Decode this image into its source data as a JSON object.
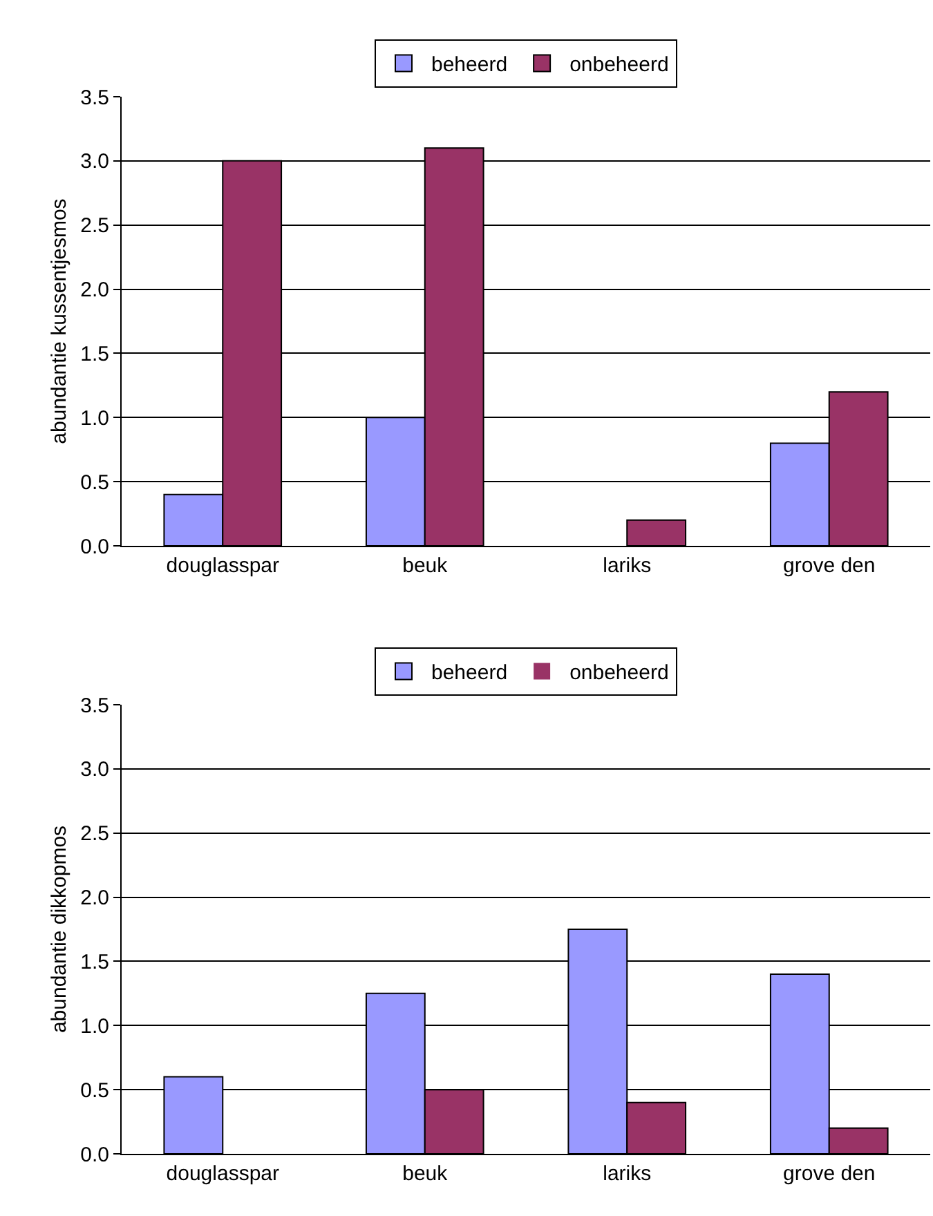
{
  "chart_data": [
    {
      "type": "bar",
      "ylabel": "abundantie kussentjesmos",
      "categories": [
        "douglasspar",
        "beuk",
        "lariks",
        "grove den"
      ],
      "series": [
        {
          "name": "beheerd",
          "color": "#9999ff",
          "values": [
            0.4,
            1.0,
            0,
            0.8
          ]
        },
        {
          "name": "onbeheerd",
          "color": "#993366",
          "values": [
            3.0,
            3.1,
            0.2,
            1.2
          ]
        }
      ],
      "ylim": [
        0,
        3.5
      ],
      "yticks": [
        {
          "value": 0,
          "label": "0.0"
        },
        0.5,
        {
          "value": 1,
          "label": "1.0"
        },
        1.5,
        {
          "value": 2,
          "label": "2.0"
        },
        2.5,
        {
          "value": 3,
          "label": "3.0"
        },
        3.5
      ],
      "grid": "y",
      "legend": "top"
    },
    {
      "type": "bar",
      "ylabel": "abundantie dikkopmos",
      "categories": [
        "douglasspar",
        "beuk",
        "lariks",
        "grove den"
      ],
      "series": [
        {
          "name": "beheerd",
          "color": "#9999ff",
          "values": [
            0.6,
            1.25,
            1.75,
            1.4
          ]
        },
        {
          "name": "onbeheerd",
          "color": "#993366",
          "values": [
            0,
            0.5,
            0.4,
            0.2
          ]
        }
      ],
      "ylim": [
        0,
        3.5
      ],
      "yticks": [
        {
          "value": 0,
          "label": "0.0"
        },
        0.5,
        {
          "value": 1,
          "label": "1.0"
        },
        1.5,
        {
          "value": 2,
          "label": "2.0"
        },
        2.5,
        {
          "value": 3,
          "label": "3.0"
        },
        3.5
      ],
      "grid": "y",
      "legend": "top"
    }
  ]
}
